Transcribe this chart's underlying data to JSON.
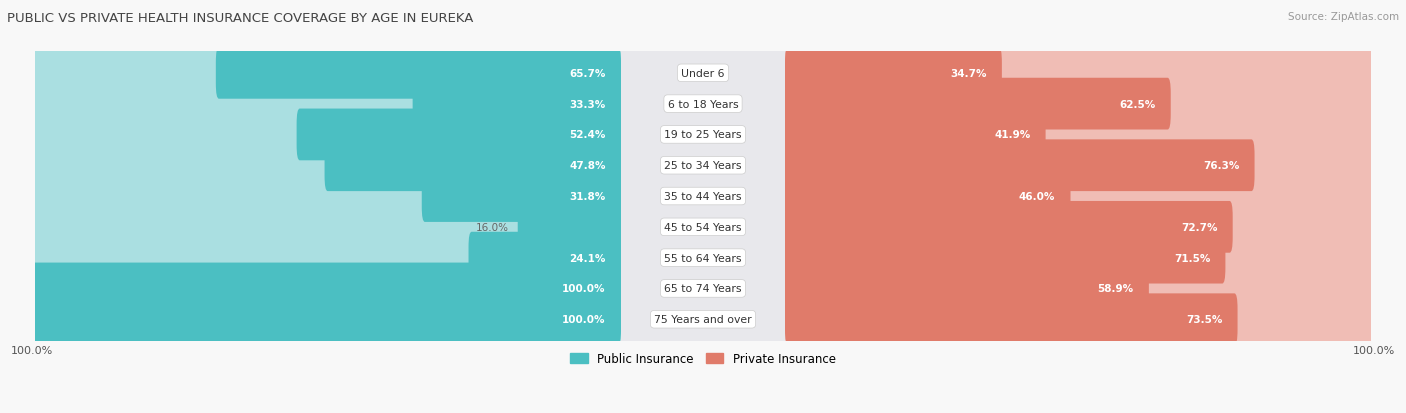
{
  "title": "PUBLIC VS PRIVATE HEALTH INSURANCE COVERAGE BY AGE IN EUREKA",
  "source": "Source: ZipAtlas.com",
  "categories": [
    "Under 6",
    "6 to 18 Years",
    "19 to 25 Years",
    "25 to 34 Years",
    "35 to 44 Years",
    "45 to 54 Years",
    "55 to 64 Years",
    "65 to 74 Years",
    "75 Years and over"
  ],
  "public_values": [
    65.7,
    33.3,
    52.4,
    47.8,
    31.8,
    16.0,
    24.1,
    100.0,
    100.0
  ],
  "private_values": [
    34.7,
    62.5,
    41.9,
    76.3,
    46.0,
    72.7,
    71.5,
    58.9,
    73.5
  ],
  "public_color": "#4bbfc2",
  "private_color": "#e07b6a",
  "public_color_light": "#aadfe1",
  "private_color_light": "#f0bdb5",
  "row_bg_color": "#e8e8ec",
  "title_color": "#555555",
  "value_inside_color": "#ffffff",
  "value_outside_color": "#666666",
  "legend_public": "Public Insurance",
  "legend_private": "Private Insurance",
  "axis_label": "100.0%",
  "max_value": 100.0,
  "pub_inside_threshold": 20,
  "priv_inside_threshold": 20
}
